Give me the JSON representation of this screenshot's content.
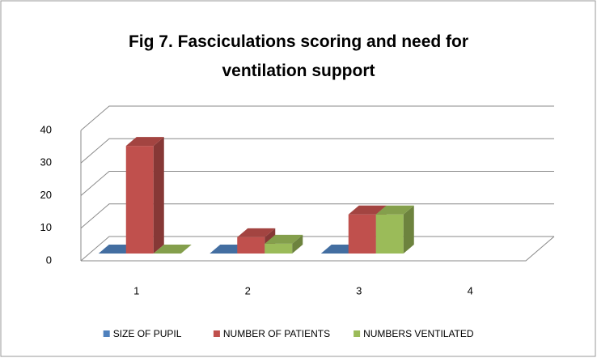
{
  "chart_data": {
    "type": "bar3d",
    "title": "Fig 7. Fasciculations scoring and need for ventilation support",
    "categories": [
      "1",
      "2",
      "3",
      "4"
    ],
    "series": [
      {
        "name": "SIZE OF PUPIL",
        "color": "#4f81bd",
        "values": [
          0,
          0,
          0,
          null
        ]
      },
      {
        "name": "NUMBER OF PATIENTS",
        "color": "#c0504d",
        "values": [
          33,
          5,
          12,
          null
        ]
      },
      {
        "name": "NUMBERS VENTILATED",
        "color": "#9bbb59",
        "values": [
          0,
          3,
          12,
          null
        ]
      }
    ],
    "ylim": [
      0,
      40
    ],
    "yticks": [
      0,
      10,
      20,
      30,
      40
    ],
    "grid": true,
    "legend": "bottom"
  }
}
